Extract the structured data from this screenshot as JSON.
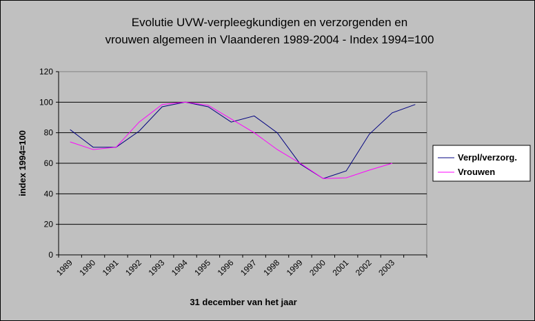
{
  "chart_data": {
    "type": "line",
    "title_lines": [
      "Evolutie UVW-verpleegkundigen en verzorgenden en",
      "vrouwen algemeen in Vlaanderen 1989-2004 - Index 1994=100"
    ],
    "xlabel": "31 december van het jaar",
    "ylabel": "index 1994=100",
    "ylim": [
      0,
      120
    ],
    "y_ticks": [
      "0",
      "20",
      "40",
      "60",
      "80",
      "100",
      "120"
    ],
    "categories": [
      "1989",
      "1990",
      "1991",
      "1992",
      "1993",
      "1994",
      "1995",
      "1996",
      "1997",
      "1998",
      "1999",
      "2000",
      "2001",
      "2002",
      "2003",
      ""
    ],
    "grid": true,
    "legend_position": "right",
    "series": [
      {
        "name": "Verpl/verzorg.",
        "color": "#000080",
        "values": [
          82,
          70.5,
          70.5,
          81,
          97,
          100,
          97,
          87,
          91,
          80,
          59.5,
          50,
          55,
          79,
          93,
          98.5
        ]
      },
      {
        "name": "Vrouwen",
        "color": "#ff00ff",
        "values": [
          74,
          69,
          70.5,
          87,
          98.5,
          100,
          98,
          89,
          80,
          69,
          60,
          50,
          50.5,
          55.5,
          60,
          null
        ]
      }
    ]
  }
}
